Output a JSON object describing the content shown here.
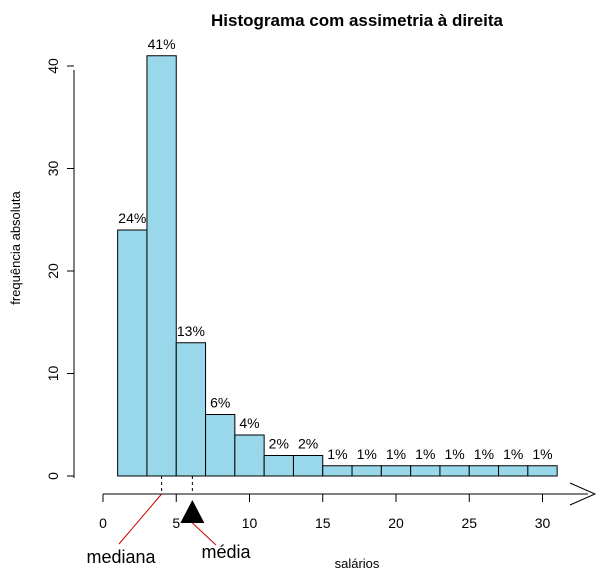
{
  "chart_data": {
    "type": "bar",
    "title": "Histograma com assimetria à direita",
    "xlabel": "salários",
    "ylabel": "frequência absoluta",
    "bin_edges": [
      1,
      3,
      5,
      7,
      9,
      11,
      13,
      15,
      17,
      19,
      21,
      23,
      25,
      27,
      29,
      31
    ],
    "values": [
      24,
      41,
      13,
      6,
      4,
      2,
      2,
      1,
      1,
      1,
      1,
      1,
      1,
      1,
      1
    ],
    "labels": [
      "24%",
      "41%",
      "13%",
      "6%",
      "4%",
      "2%",
      "2%",
      "1%",
      "1%",
      "1%",
      "1%",
      "1%",
      "1%",
      "1%",
      "1%"
    ],
    "xlim": [
      0,
      32
    ],
    "ylim": [
      0,
      43
    ],
    "x_ticks": [
      0,
      5,
      10,
      15,
      20,
      25,
      30
    ],
    "x_tick_labels": [
      "0",
      "5",
      "10",
      "15",
      "20",
      "25",
      "30"
    ],
    "y_ticks": [
      0,
      10,
      20,
      30,
      40
    ],
    "y_tick_labels": [
      "0",
      "10",
      "20",
      "30",
      "40"
    ],
    "bar_color": "#98d8ea",
    "grid": false,
    "annotations": [
      {
        "text": "mediana",
        "x": 4.0
      },
      {
        "text": "média",
        "x": 6.1
      }
    ]
  }
}
